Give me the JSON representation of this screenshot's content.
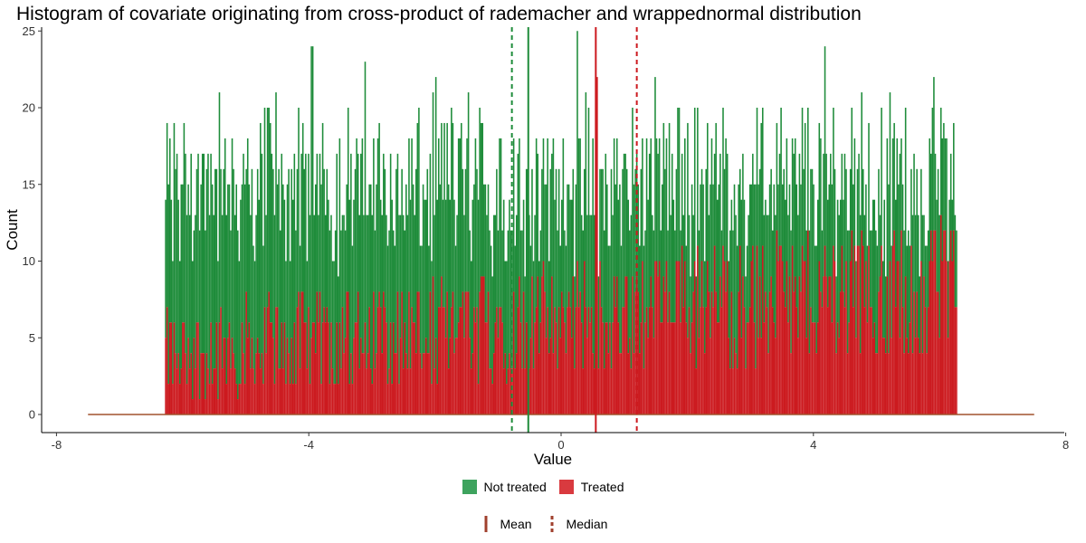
{
  "chart_data": {
    "type": "bar",
    "subtype": "stacked histogram",
    "title": "Histogram of covariate originating from cross-product of rademacher and wrappednormal distribution",
    "xlabel": "Value",
    "ylabel": "Count",
    "xlim": [
      -8,
      8
    ],
    "ylim": [
      0,
      25
    ],
    "x_ticks": [
      -8,
      -4,
      0,
      4,
      8
    ],
    "y_ticks": [
      0,
      5,
      10,
      15,
      20,
      25
    ],
    "grid": false,
    "support": [
      -6.28,
      6.28
    ],
    "baseline_extent": [
      -7.5,
      7.5
    ],
    "series": [
      {
        "name": "Not treated",
        "color": "#1e8c3a",
        "typical_count_left": [
          7,
          14
        ],
        "typical_count_right": [
          4,
          9
        ],
        "peak": 24,
        "peak_at": -3.95
      },
      {
        "name": "Treated",
        "color": "#cc1a1f",
        "typical_count_left": [
          1,
          7
        ],
        "typical_count_right": [
          4,
          13
        ],
        "peak": 22,
        "peak_at": 0.55
      }
    ],
    "reference_lines": [
      {
        "series": "Not treated",
        "stat": "Mean",
        "x": -0.52,
        "style": "solid",
        "color": "#1e8c3a"
      },
      {
        "series": "Not treated",
        "stat": "Median",
        "x": -0.78,
        "style": "dashed",
        "color": "#1e8c3a"
      },
      {
        "series": "Treated",
        "stat": "Mean",
        "x": 0.55,
        "style": "solid",
        "color": "#cc1a1f"
      },
      {
        "series": "Treated",
        "stat": "Median",
        "x": 1.2,
        "style": "dashed",
        "color": "#cc1a1f"
      }
    ],
    "legend": {
      "placement": "bottom",
      "fill_items": [
        {
          "label": "Not treated",
          "color": "#3ea35e"
        },
        {
          "label": "Treated",
          "color": "#d93a3f"
        }
      ],
      "line_items": [
        {
          "label": "Mean",
          "style": "solid",
          "color": "#a0402e"
        },
        {
          "label": "Median",
          "style": "dashed",
          "color": "#a0402e"
        }
      ]
    }
  }
}
